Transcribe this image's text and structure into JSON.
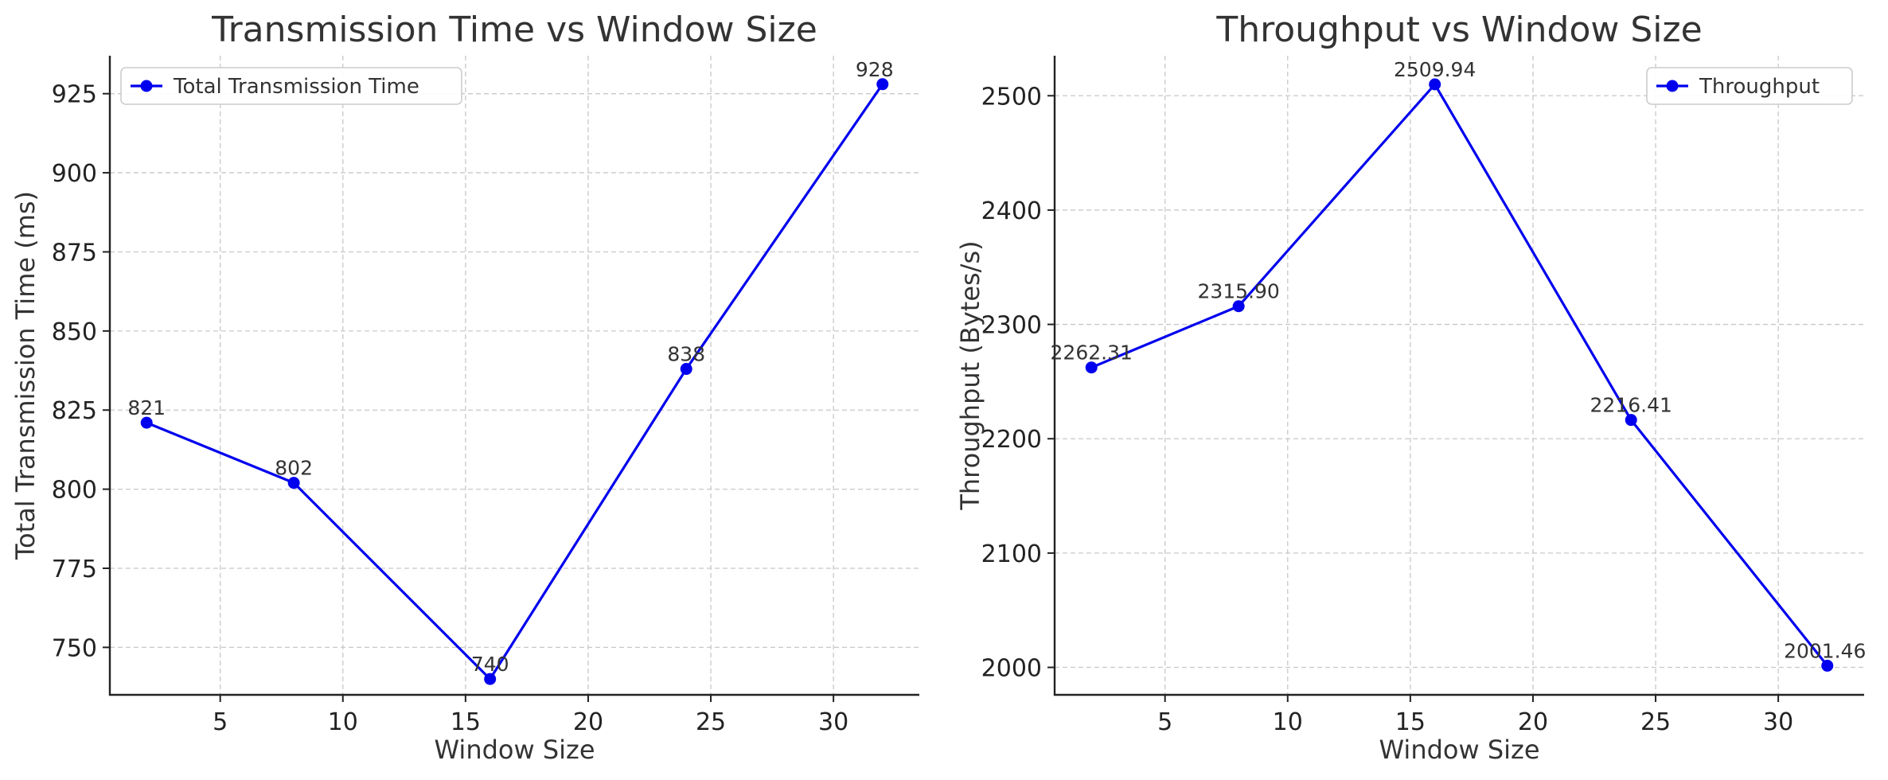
{
  "chart_data": [
    {
      "type": "line",
      "title": "Transmission Time vs Window Size",
      "xlabel": "Window Size",
      "ylabel": "Total Transmission Time (ms)",
      "x": [
        2,
        8,
        16,
        24,
        32
      ],
      "xlim": [
        0.5,
        33.5
      ],
      "ylim": [
        735,
        937
      ],
      "xticks": [
        5,
        10,
        15,
        20,
        25,
        30
      ],
      "yticks": [
        750,
        775,
        800,
        825,
        850,
        875,
        900,
        925
      ],
      "grid": true,
      "legend": "upper left",
      "series": [
        {
          "name": "Total Transmission Time",
          "color": "#0000ee",
          "marker": "circle",
          "values": [
            821,
            802,
            740,
            838,
            928
          ],
          "labels": [
            "821",
            "802",
            "740",
            "838",
            "928"
          ]
        }
      ]
    },
    {
      "type": "line",
      "title": "Throughput vs Window Size",
      "xlabel": "Window Size",
      "ylabel": "Throughput (Bytes/s)",
      "x": [
        2,
        8,
        16,
        24,
        32
      ],
      "xlim": [
        0.5,
        33.5
      ],
      "ylim": [
        1976,
        2535
      ],
      "xticks": [
        5,
        10,
        15,
        20,
        25,
        30
      ],
      "yticks": [
        2000,
        2100,
        2200,
        2300,
        2400,
        2500
      ],
      "grid": true,
      "legend": "upper right",
      "series": [
        {
          "name": "Throughput",
          "color": "#0000ee",
          "marker": "circle",
          "values": [
            2262.31,
            2315.9,
            2509.94,
            2216.41,
            2001.46
          ],
          "labels": [
            "2262.31",
            "2315.90",
            "2509.94",
            "2216.41",
            "2001.46"
          ]
        }
      ]
    }
  ]
}
